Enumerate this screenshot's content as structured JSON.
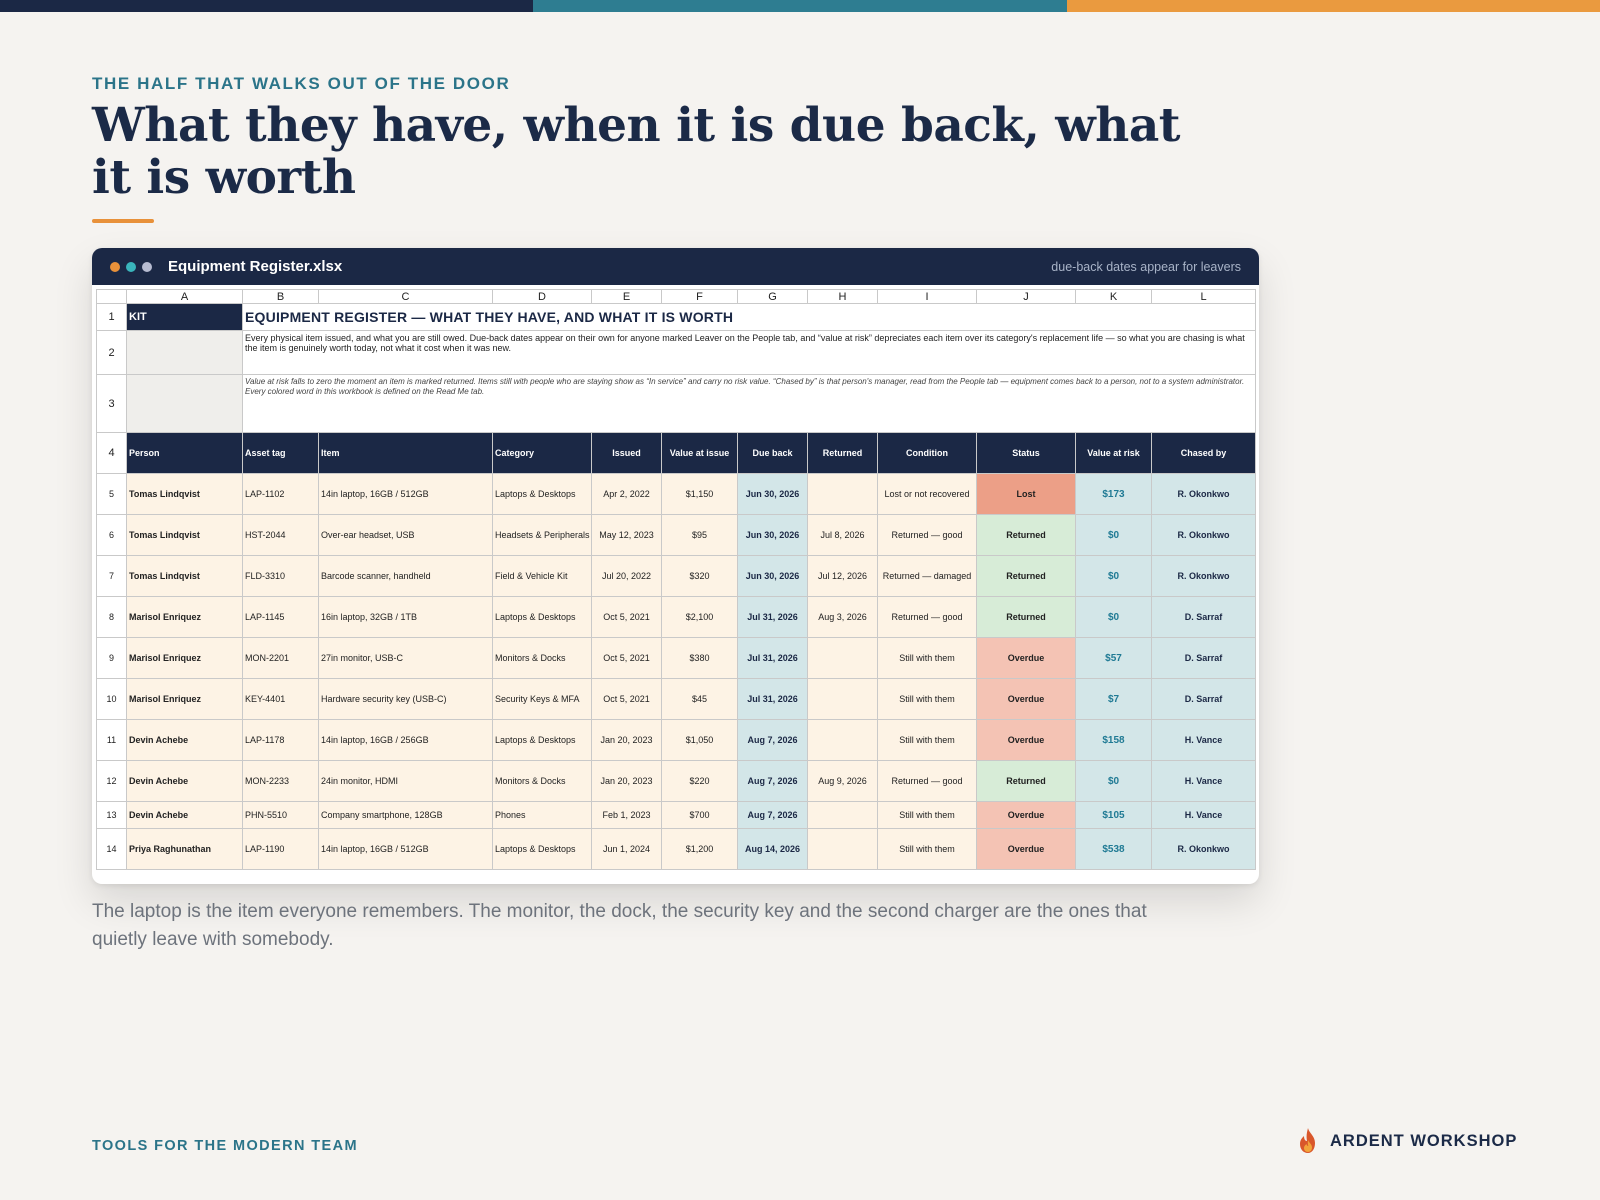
{
  "colors": {
    "bar1": "#1b2845",
    "bar2": "#2e7d91",
    "bar3": "#ea9a3f",
    "dot1": "#e8913a",
    "dot2": "#3ab5bc",
    "dot3": "#b7bcd1"
  },
  "eyebrow": "THE HALF THAT WALKS OUT OF THE DOOR",
  "title": "What they have, when it is due back, what it is worth",
  "window": {
    "title": "Equipment Register.xlsx",
    "note": "due-back dates appear for leavers"
  },
  "sheet": {
    "columns": [
      "A",
      "B",
      "C",
      "D",
      "E",
      "F",
      "G",
      "H",
      "I",
      "J",
      "K",
      "L"
    ],
    "row_numbers": [
      "1",
      "2",
      "3",
      "4",
      "5",
      "6",
      "7",
      "8",
      "9",
      "10",
      "11",
      "12",
      "13",
      "14"
    ],
    "kit_label": "KIT",
    "heading": "EQUIPMENT REGISTER — WHAT THEY HAVE, AND WHAT IT IS WORTH",
    "description": "Every physical item issued, and what you are still owed. Due-back dates appear on their own for anyone marked Leaver on the People tab, and “value at risk” depreciates each item over its category's replacement life — so what you are chasing is what the item is genuinely worth today, not what it cost when it was new.",
    "note": "Value at risk falls to zero the moment an item is marked returned. Items still with people who are staying show as “In service” and carry no risk value. “Chased by” is that person's manager, read from the People tab — equipment comes back to a person, not to a system administrator. Every colored word in this workbook is defined on the Read Me tab.",
    "headers": [
      "Person",
      "Asset tag",
      "Item",
      "Category",
      "Issued",
      "Value at issue",
      "Due back",
      "Returned",
      "Condition",
      "Status",
      "Value at risk",
      "Chased by"
    ],
    "rows": [
      {
        "person": "Tomas Lindqvist",
        "tag": "LAP-1102",
        "item": "14in laptop, 16GB / 512GB",
        "category": "Laptops & Desktops",
        "issued": "Apr 2, 2022",
        "value": "$1,150",
        "due": "Jun 30, 2026",
        "returned": "",
        "condition": "Lost or not recovered",
        "status": "Lost",
        "risk": "$173",
        "chased": "R. Okonkwo"
      },
      {
        "person": "Tomas Lindqvist",
        "tag": "HST-2044",
        "item": "Over-ear headset, USB",
        "category": "Headsets & Peripherals",
        "issued": "May 12, 2023",
        "value": "$95",
        "due": "Jun 30, 2026",
        "returned": "Jul 8, 2026",
        "condition": "Returned — good",
        "status": "Returned",
        "risk": "$0",
        "chased": "R. Okonkwo"
      },
      {
        "person": "Tomas Lindqvist",
        "tag": "FLD-3310",
        "item": "Barcode scanner, handheld",
        "category": "Field & Vehicle Kit",
        "issued": "Jul 20, 2022",
        "value": "$320",
        "due": "Jun 30, 2026",
        "returned": "Jul 12, 2026",
        "condition": "Returned — damaged",
        "status": "Returned",
        "risk": "$0",
        "chased": "R. Okonkwo"
      },
      {
        "person": "Marisol Enriquez",
        "tag": "LAP-1145",
        "item": "16in laptop, 32GB / 1TB",
        "category": "Laptops & Desktops",
        "issued": "Oct 5, 2021",
        "value": "$2,100",
        "due": "Jul 31, 2026",
        "returned": "Aug 3, 2026",
        "condition": "Returned — good",
        "status": "Returned",
        "risk": "$0",
        "chased": "D. Sarraf"
      },
      {
        "person": "Marisol Enriquez",
        "tag": "MON-2201",
        "item": "27in monitor, USB-C",
        "category": "Monitors & Docks",
        "issued": "Oct 5, 2021",
        "value": "$380",
        "due": "Jul 31, 2026",
        "returned": "",
        "condition": "Still with them",
        "status": "Overdue",
        "risk": "$57",
        "chased": "D. Sarraf"
      },
      {
        "person": "Marisol Enriquez",
        "tag": "KEY-4401",
        "item": "Hardware security key (USB-C)",
        "category": "Security Keys & MFA",
        "issued": "Oct 5, 2021",
        "value": "$45",
        "due": "Jul 31, 2026",
        "returned": "",
        "condition": "Still with them",
        "status": "Overdue",
        "risk": "$7",
        "chased": "D. Sarraf"
      },
      {
        "person": "Devin Achebe",
        "tag": "LAP-1178",
        "item": "14in laptop, 16GB / 256GB",
        "category": "Laptops & Desktops",
        "issued": "Jan 20, 2023",
        "value": "$1,050",
        "due": "Aug 7, 2026",
        "returned": "",
        "condition": "Still with them",
        "status": "Overdue",
        "risk": "$158",
        "chased": "H. Vance"
      },
      {
        "person": "Devin Achebe",
        "tag": "MON-2233",
        "item": "24in monitor, HDMI",
        "category": "Monitors & Docks",
        "issued": "Jan 20, 2023",
        "value": "$220",
        "due": "Aug 7, 2026",
        "returned": "Aug 9, 2026",
        "condition": "Returned — good",
        "status": "Returned",
        "risk": "$0",
        "chased": "H. Vance"
      },
      {
        "person": "Devin Achebe",
        "tag": "PHN-5510",
        "item": "Company smartphone, 128GB",
        "category": "Phones",
        "issued": "Feb 1, 2023",
        "value": "$700",
        "due": "Aug 7, 2026",
        "returned": "",
        "condition": "Still with them",
        "status": "Overdue",
        "risk": "$105",
        "chased": "H. Vance"
      },
      {
        "person": "Priya Raghunathan",
        "tag": "LAP-1190",
        "item": "14in laptop, 16GB / 512GB",
        "category": "Laptops & Desktops",
        "issued": "Jun 1, 2024",
        "value": "$1,200",
        "due": "Aug 14, 2026",
        "returned": "",
        "condition": "Still with them",
        "status": "Overdue",
        "risk": "$538",
        "chased": "R. Okonkwo"
      }
    ]
  },
  "caption": "The laptop is the item everyone remembers. The monitor, the dock, the security key and the second charger are the ones that quietly leave with somebody.",
  "footer": {
    "left": "TOOLS FOR THE MODERN TEAM",
    "brand": "ARDENT WORKSHOP",
    "brand_icon": "flame-icon"
  }
}
